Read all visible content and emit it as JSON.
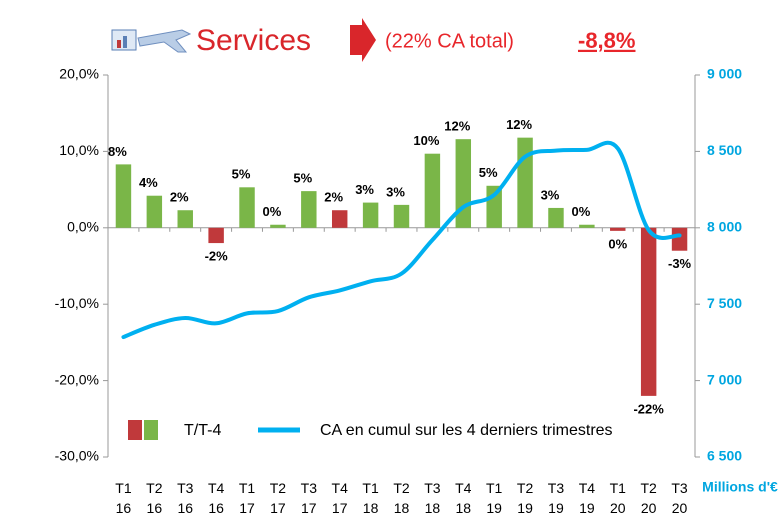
{
  "chart_data": {
    "type": "bar",
    "title": "Services",
    "subtitle": "(22% CA total)",
    "annotation": "-8,8%",
    "y2label": "Millions d'€",
    "categories": [
      "T1 16",
      "T2 16",
      "T3 16",
      "T4 16",
      "T1 17",
      "T2 17",
      "T3 17",
      "T4 17",
      "T1 18",
      "T2 18",
      "T3 18",
      "T4 18",
      "T1 19",
      "T2 19",
      "T3 19",
      "T4 19",
      "T1 20",
      "T2 20",
      "T3 20"
    ],
    "series": [
      {
        "name": "T/T-4",
        "type": "bar",
        "values": [
          8.3,
          4.2,
          2.3,
          -2,
          5.3,
          0.4,
          4.8,
          2.3,
          3.3,
          3,
          9.7,
          11.6,
          5.5,
          11.8,
          2.6,
          0.4,
          -0.4,
          -22,
          -3
        ],
        "value_labels": [
          "8%",
          "4%",
          "2%",
          "-2%",
          "5%",
          "0%",
          "5%",
          "2%",
          "3%",
          "3%",
          "10%",
          "12%",
          "5%",
          "12%",
          "3%",
          "0%",
          "0%",
          "-22%",
          "-3%"
        ],
        "colors": [
          "#7ab648",
          "#7ab648",
          "#7ab648",
          "#c0393b",
          "#7ab648",
          "#7ab648",
          "#7ab648",
          "#c0393b",
          "#7ab648",
          "#7ab648",
          "#7ab648",
          "#7ab648",
          "#7ab648",
          "#7ab648",
          "#7ab648",
          "#7ab648",
          "#c0393b",
          "#c0393b",
          "#c0393b"
        ]
      },
      {
        "name": "CA en cumul sur les 4 derniers trimestres",
        "type": "line",
        "axis": "y2",
        "color": "#00b0f0",
        "values": [
          7285,
          7365,
          7410,
          7375,
          7440,
          7455,
          7545,
          7590,
          7650,
          7700,
          7920,
          8135,
          8215,
          8465,
          8505,
          8510,
          8520,
          7985,
          7950
        ]
      }
    ],
    "ylim": [
      -30,
      20
    ],
    "yticks": [
      {
        "value": 20,
        "label": "20,0%"
      },
      {
        "value": 10,
        "label": "10,0%"
      },
      {
        "value": 0,
        "label": "0,0%"
      },
      {
        "value": -10,
        "label": "-10,0%"
      },
      {
        "value": -20,
        "label": "-20,0%"
      },
      {
        "value": -30,
        "label": "-30,0%"
      }
    ],
    "y2lim": [
      6500,
      9000
    ],
    "y2ticks": [
      {
        "value": 9000,
        "label": "9 000"
      },
      {
        "value": 8500,
        "label": "8 500"
      },
      {
        "value": 8000,
        "label": "8 000"
      },
      {
        "value": 7500,
        "label": "7 500"
      },
      {
        "value": 7000,
        "label": "7 000"
      },
      {
        "value": 6500,
        "label": "6 500"
      }
    ],
    "grid": false
  }
}
